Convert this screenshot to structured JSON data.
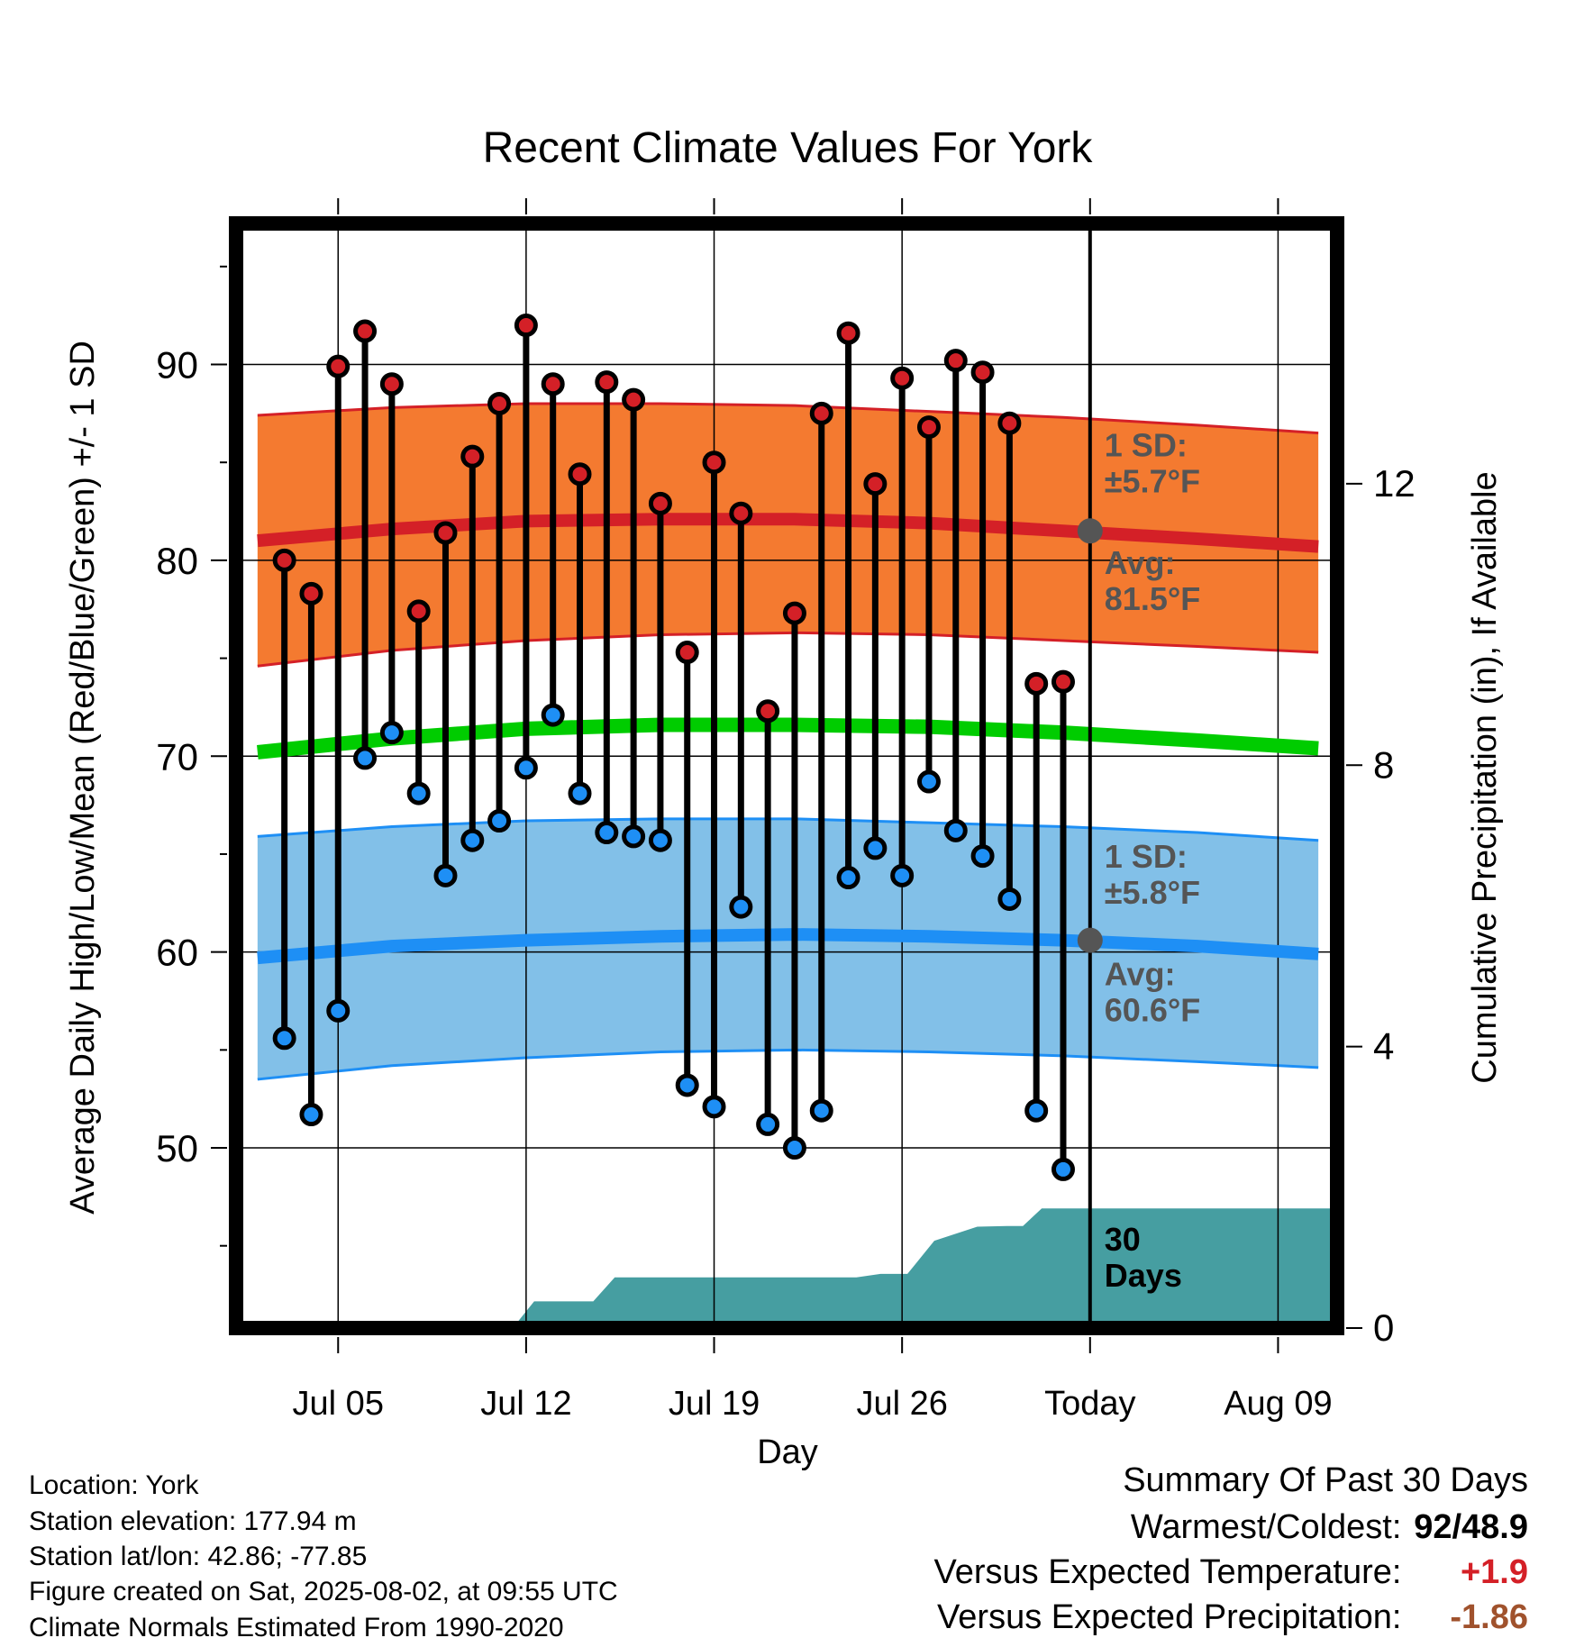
{
  "chart_data": {
    "type": "line",
    "title": "Recent Climate Values For York",
    "xlabel": "Day",
    "ylabel": "Average Daily High/Low/Mean (Red/Blue/Green) +/- 1 SD",
    "y2label": "Cumulative Precipitation (in), If Available",
    "ylim": [
      40.8,
      97.2
    ],
    "y2lim": [
      0,
      15.7
    ],
    "xlim": [
      -0.8,
      40.2
    ],
    "yticks": [
      50,
      60,
      70,
      80,
      90
    ],
    "y2ticks": [
      0,
      4,
      8,
      12
    ],
    "xticks": [
      {
        "day": 3,
        "label": "Jul 05"
      },
      {
        "day": 10,
        "label": "Jul 12"
      },
      {
        "day": 17,
        "label": "Jul 19"
      },
      {
        "day": 24,
        "label": "Jul 26"
      },
      {
        "day": 31,
        "label": "Today"
      },
      {
        "day": 38,
        "label": "Aug 09"
      }
    ],
    "grid": true,
    "today_day": 31,
    "observations": {
      "days": [
        1,
        2,
        3,
        4,
        5,
        6,
        7,
        8,
        9,
        10,
        11,
        12,
        13,
        14,
        15,
        16,
        17,
        18,
        19,
        20,
        21,
        22,
        23,
        24,
        25,
        26,
        27,
        28,
        29,
        30
      ],
      "high": [
        80.0,
        78.3,
        89.9,
        91.7,
        89.0,
        77.4,
        81.4,
        85.3,
        88.0,
        92.0,
        89.0,
        84.4,
        89.1,
        88.2,
        82.9,
        75.3,
        85.0,
        82.4,
        72.3,
        77.3,
        87.5,
        91.6,
        83.9,
        89.3,
        86.8,
        90.2,
        89.6,
        87.0,
        73.7,
        73.8
      ],
      "low": [
        55.6,
        51.7,
        57.0,
        69.9,
        71.2,
        68.1,
        63.9,
        65.7,
        66.7,
        69.4,
        72.1,
        68.1,
        66.1,
        65.9,
        65.7,
        53.2,
        52.1,
        62.3,
        51.2,
        50.0,
        51.9,
        63.8,
        65.3,
        63.9,
        68.7,
        66.2,
        64.9,
        62.7,
        51.9,
        48.9
      ]
    },
    "normals": {
      "days": [
        0,
        5,
        10,
        15,
        20,
        25,
        30,
        35,
        39.5
      ],
      "high_avg": [
        81.0,
        81.6,
        82.0,
        82.1,
        82.1,
        81.9,
        81.5,
        81.1,
        80.7
      ],
      "high_sd_upper": [
        87.4,
        87.8,
        88.0,
        88.0,
        87.9,
        87.6,
        87.3,
        86.9,
        86.5
      ],
      "high_sd_lower": [
        74.6,
        75.4,
        75.9,
        76.2,
        76.3,
        76.2,
        75.9,
        75.6,
        75.3
      ],
      "mean": [
        70.2,
        70.9,
        71.4,
        71.6,
        71.6,
        71.5,
        71.2,
        70.8,
        70.4
      ],
      "low_avg": [
        59.7,
        60.3,
        60.6,
        60.8,
        60.9,
        60.8,
        60.6,
        60.3,
        59.9
      ],
      "low_sd_upper": [
        65.9,
        66.4,
        66.7,
        66.8,
        66.8,
        66.6,
        66.4,
        66.1,
        65.7
      ],
      "low_sd_lower": [
        53.5,
        54.2,
        54.6,
        54.9,
        55.0,
        54.9,
        54.7,
        54.4,
        54.1
      ]
    },
    "precip_cumulative": {
      "days": [
        -0.5,
        9.5,
        10.3,
        12.5,
        13.3,
        15.3,
        16.3,
        22.3,
        23.2,
        24.2,
        25.2,
        26.8,
        27.9,
        28.5,
        29.2,
        30,
        40
      ],
      "values": [
        0,
        0,
        0.38,
        0.38,
        0.72,
        0.72,
        0.72,
        0.72,
        0.77,
        0.77,
        1.24,
        1.44,
        1.45,
        1.45,
        1.7,
        1.7,
        1.7
      ]
    },
    "annotations": {
      "high_sd": {
        "line1": "1 SD:",
        "line2": "±5.7°F"
      },
      "high_avg": {
        "line1": "Avg:",
        "line2": "81.5°F",
        "value": 81.5
      },
      "low_sd": {
        "line1": "1 SD:",
        "line2": "±5.8°F"
      },
      "low_avg": {
        "line1": "Avg:",
        "line2": "60.6°F",
        "value": 60.6
      },
      "precip_days": {
        "line1": "30",
        "line2": "Days"
      }
    },
    "colors": {
      "high_band": "#f47a30",
      "high_line": "#d42027",
      "low_band": "#82c0e8",
      "low_line": "#1e8ff5",
      "mean_line": "#00cc00",
      "precip": "#469ea1",
      "annotation": "#555555",
      "high_dot": "#d42027",
      "low_dot": "#1e8ff5"
    }
  },
  "info": {
    "location": "Location: York",
    "elevation": "Station elevation: 177.94 m",
    "latlon": "Station lat/lon: 42.86; -77.85",
    "created": "Figure created on Sat, 2025-08-02, at 09:55 UTC",
    "normals": "Climate Normals Estimated From 1990-2020"
  },
  "summary": {
    "heading": "Summary Of Past 30 Days",
    "warm_cold_label": "Warmest/Coldest:",
    "warm_cold_value": "92/48.9",
    "temp_label": "Versus Expected Temperature:",
    "temp_value": "+1.9",
    "temp_color": "#d42027",
    "precip_label": "Versus Expected Precipitation:",
    "precip_value": "-1.86",
    "precip_color": "#a0522d"
  }
}
